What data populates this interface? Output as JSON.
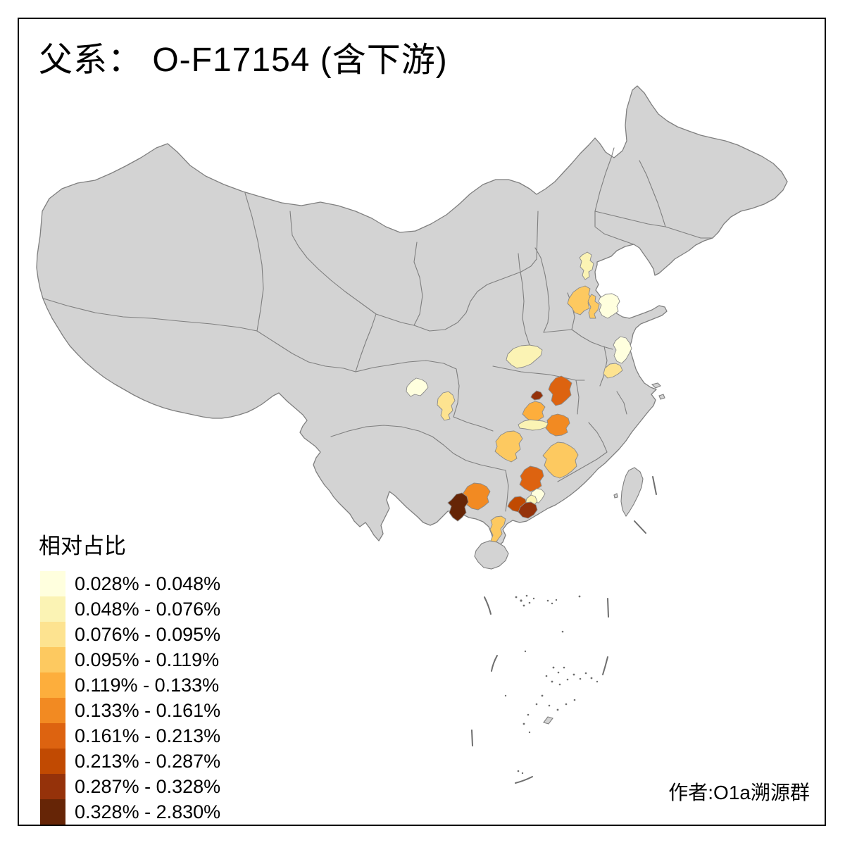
{
  "title": "父系： O-F17154 (含下游)",
  "attribution": "作者:O1a溯源群",
  "legend": {
    "title": "相对占比",
    "classes": [
      {
        "label": "0.028% - 0.048%",
        "color": "#FFFFDE"
      },
      {
        "label": "0.048% - 0.076%",
        "color": "#FBF3B4"
      },
      {
        "label": "0.076% - 0.095%",
        "color": "#FDE390"
      },
      {
        "label": "0.095% - 0.119%",
        "color": "#FDC960"
      },
      {
        "label": "0.119% - 0.133%",
        "color": "#FDAE3C"
      },
      {
        "label": "0.133% - 0.161%",
        "color": "#F28A22"
      },
      {
        "label": "0.161% - 0.213%",
        "color": "#DD6310"
      },
      {
        "label": "0.213% - 0.287%",
        "color": "#C14A02"
      },
      {
        "label": "0.287% - 0.328%",
        "color": "#95320A"
      },
      {
        "label": "0.328% - 2.830%",
        "color": "#662506"
      }
    ]
  },
  "map": {
    "land_color": "#D3D3D3",
    "border_color": "#7F7F7F",
    "sea_color": "#FFFFFF",
    "regions": [
      {
        "id": "region-1",
        "class_index": 1,
        "range": "0.048% - 0.076%"
      },
      {
        "id": "region-2",
        "class_index": 3,
        "range": "0.095% - 0.119%"
      },
      {
        "id": "region-3",
        "class_index": 3,
        "range": "0.095% - 0.119%"
      },
      {
        "id": "region-4",
        "class_index": 0,
        "range": "0.028% - 0.048%"
      },
      {
        "id": "region-5",
        "class_index": 1,
        "range": "0.048% - 0.076%"
      },
      {
        "id": "region-6",
        "class_index": 0,
        "range": "0.028% - 0.048%"
      },
      {
        "id": "region-7",
        "class_index": 2,
        "range": "0.076% - 0.095%"
      },
      {
        "id": "region-8",
        "class_index": 0,
        "range": "0.028% - 0.048%"
      },
      {
        "id": "region-9",
        "class_index": 2,
        "range": "0.076% - 0.095%"
      },
      {
        "id": "region-10",
        "class_index": 8,
        "range": "0.287% - 0.328%"
      },
      {
        "id": "region-11",
        "class_index": 6,
        "range": "0.161% - 0.213%"
      },
      {
        "id": "region-12",
        "class_index": 4,
        "range": "0.119% - 0.133%"
      },
      {
        "id": "region-13",
        "class_index": 1,
        "range": "0.048% - 0.076%"
      },
      {
        "id": "region-14",
        "class_index": 5,
        "range": "0.133% - 0.161%"
      },
      {
        "id": "region-15",
        "class_index": 3,
        "range": "0.095% - 0.119%"
      },
      {
        "id": "region-16",
        "class_index": 3,
        "range": "0.095% - 0.119%"
      },
      {
        "id": "region-17",
        "class_index": 6,
        "range": "0.161% - 0.213%"
      },
      {
        "id": "region-18",
        "class_index": 0,
        "range": "0.028% - 0.048%"
      },
      {
        "id": "region-19",
        "class_index": 1,
        "range": "0.048% - 0.076%"
      },
      {
        "id": "region-20",
        "class_index": 7,
        "range": "0.213% - 0.287%"
      },
      {
        "id": "region-21",
        "class_index": 8,
        "range": "0.287% - 0.328%"
      },
      {
        "id": "region-22",
        "class_index": 5,
        "range": "0.133% - 0.161%"
      },
      {
        "id": "region-23",
        "class_index": 9,
        "range": "0.328% - 2.830%"
      },
      {
        "id": "region-24",
        "class_index": 3,
        "range": "0.095% - 0.119%"
      }
    ]
  }
}
